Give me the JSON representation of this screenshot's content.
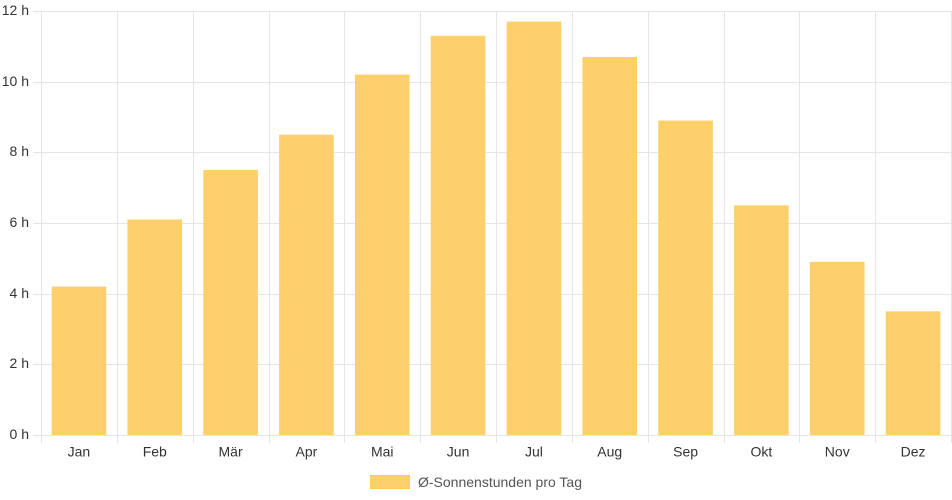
{
  "chart_data": {
    "type": "bar",
    "categories": [
      "Jan",
      "Feb",
      "Mär",
      "Apr",
      "Mai",
      "Jun",
      "Jul",
      "Aug",
      "Sep",
      "Okt",
      "Nov",
      "Dez"
    ],
    "series": [
      {
        "name": "Ø-Sonnenstunden pro Tag",
        "values": [
          4.2,
          6.1,
          7.5,
          8.5,
          10.2,
          11.3,
          11.7,
          10.7,
          8.9,
          6.5,
          4.9,
          3.5
        ]
      }
    ],
    "ylim": [
      0,
      12
    ],
    "yticks": [
      0,
      2,
      4,
      6,
      8,
      10,
      12
    ],
    "ytick_labels": [
      "0 h",
      "2 h",
      "4 h",
      "6 h",
      "8 h",
      "10 h",
      "12 h"
    ],
    "grid": true,
    "legend_position": "bottom",
    "colors": {
      "bar_fill": "#fdd06b",
      "grid": "#e5e5e5",
      "text": "#333333"
    }
  }
}
